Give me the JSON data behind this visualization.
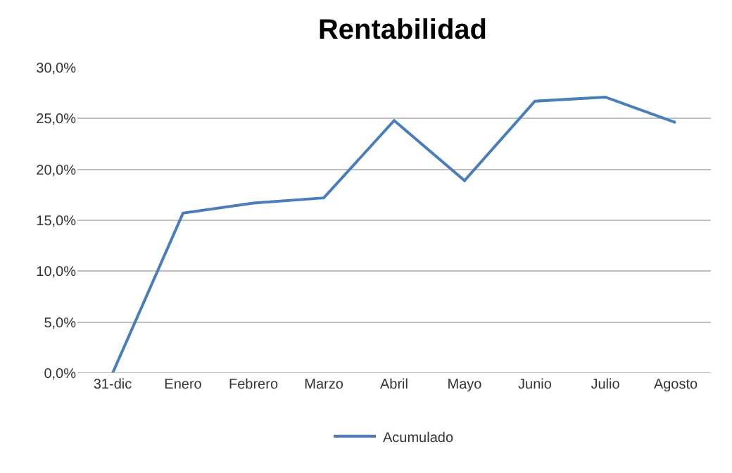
{
  "chart_data": {
    "type": "line",
    "title": "Rentabilidad",
    "categories": [
      "31-dic",
      "Enero",
      "Febrero",
      "Marzo",
      "Abril",
      "Mayo",
      "Junio",
      "Julio",
      "Agosto"
    ],
    "series": [
      {
        "name": "Acumulado",
        "color": "#4a7ebb",
        "values": [
          0,
          15.7,
          16.7,
          17.2,
          24.8,
          18.9,
          26.7,
          27.1,
          24.6
        ]
      }
    ],
    "ylim": [
      0,
      30
    ],
    "yticks": [
      {
        "value": 0,
        "label": "0,0%"
      },
      {
        "value": 5,
        "label": "5,0%"
      },
      {
        "value": 10,
        "label": "10,0%"
      },
      {
        "value": 15,
        "label": "15,0%"
      },
      {
        "value": 20,
        "label": "20,0%"
      },
      {
        "value": 25,
        "label": "25,0%"
      },
      {
        "value": 30,
        "label": "30,0%"
      }
    ],
    "grid": "y",
    "legend": "bottom",
    "marker": "none",
    "line_style": "solid"
  }
}
